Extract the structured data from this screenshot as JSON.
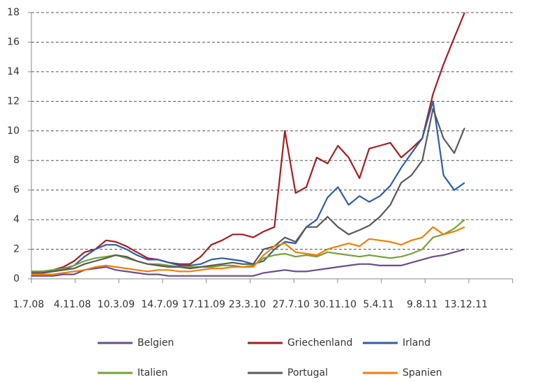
{
  "chart_data": {
    "type": "line",
    "x": [
      "1.7.08",
      "1.8.08",
      "1.9.08",
      "1.10.08",
      "1.11.08",
      "1.12.08",
      "1.1.09",
      "1.2.09",
      "1.3.09",
      "1.4.09",
      "1.5.09",
      "1.6.09",
      "1.7.09",
      "1.8.09",
      "1.9.09",
      "1.10.09",
      "1.11.09",
      "1.12.09",
      "1.1.10",
      "1.2.10",
      "1.3.10",
      "1.4.10",
      "1.5.10",
      "1.6.10",
      "1.7.10",
      "1.8.10",
      "1.9.10",
      "1.10.10",
      "1.11.10",
      "1.12.10",
      "1.1.11",
      "1.2.11",
      "1.3.11",
      "1.4.11",
      "1.5.11",
      "1.6.11",
      "1.7.11",
      "1.8.11",
      "1.9.11",
      "1.10.11",
      "1.11.11",
      "1.12.11"
    ],
    "xticks": [
      "1.7.08",
      "4.11.08",
      "10.3.09",
      "14.7.09",
      "17.11.09",
      "23.3.10",
      "27.7.10",
      "30.11.10",
      "5.4.11",
      "9.8.11",
      "13.12.11"
    ],
    "ylim": [
      0,
      18
    ],
    "yticks": [
      0,
      2,
      4,
      6,
      8,
      10,
      12,
      14,
      16,
      18
    ],
    "grid": true,
    "series": [
      {
        "name": "Belgien",
        "color": "#6b4c8f",
        "values": [
          0.2,
          0.2,
          0.2,
          0.3,
          0.3,
          0.6,
          0.7,
          0.8,
          0.6,
          0.5,
          0.4,
          0.3,
          0.3,
          0.2,
          0.2,
          0.2,
          0.2,
          0.2,
          0.2,
          0.2,
          0.2,
          0.2,
          0.4,
          0.5,
          0.6,
          0.5,
          0.5,
          0.6,
          0.7,
          0.8,
          0.9,
          1.0,
          1.0,
          0.9,
          0.9,
          0.9,
          1.1,
          1.3,
          1.5,
          1.6,
          1.8,
          2.0
        ]
      },
      {
        "name": "Griechenland",
        "color": "#a51d1d",
        "values": [
          0.5,
          0.5,
          0.6,
          0.8,
          1.2,
          1.8,
          2.0,
          2.6,
          2.5,
          2.2,
          1.8,
          1.4,
          1.3,
          1.1,
          1.0,
          1.0,
          1.5,
          2.3,
          2.6,
          3.0,
          3.0,
          2.8,
          3.2,
          3.5,
          10.0,
          5.8,
          6.2,
          8.2,
          7.8,
          9.0,
          8.2,
          6.8,
          8.8,
          9.0,
          9.2,
          8.2,
          8.8,
          9.5,
          12.5,
          14.5,
          16.3,
          18.0
        ]
      },
      {
        "name": "Irland",
        "color": "#2e5ea8",
        "values": [
          0.4,
          0.4,
          0.5,
          0.6,
          0.9,
          1.5,
          2.0,
          2.3,
          2.3,
          2.0,
          1.6,
          1.3,
          1.3,
          1.1,
          0.9,
          0.9,
          1.0,
          1.3,
          1.4,
          1.3,
          1.2,
          1.0,
          1.2,
          2.0,
          2.5,
          2.4,
          3.5,
          4.0,
          5.5,
          6.2,
          5.0,
          5.6,
          5.2,
          5.6,
          6.3,
          7.5,
          8.5,
          9.5,
          12.0,
          7.0,
          6.0,
          6.5
        ]
      },
      {
        "name": "Italien",
        "color": "#77a03a",
        "values": [
          0.5,
          0.5,
          0.6,
          0.7,
          0.9,
          1.2,
          1.4,
          1.5,
          1.6,
          1.4,
          1.2,
          1.0,
          1.0,
          0.9,
          0.8,
          0.8,
          0.8,
          0.8,
          0.9,
          0.9,
          0.8,
          0.9,
          1.4,
          1.6,
          1.7,
          1.5,
          1.6,
          1.5,
          1.8,
          1.7,
          1.6,
          1.5,
          1.6,
          1.5,
          1.4,
          1.5,
          1.7,
          2.0,
          2.8,
          3.0,
          3.4,
          4.0
        ]
      },
      {
        "name": "Portugal",
        "color": "#595959",
        "values": [
          0.4,
          0.4,
          0.5,
          0.6,
          0.7,
          1.0,
          1.2,
          1.4,
          1.6,
          1.5,
          1.2,
          1.0,
          0.9,
          0.8,
          0.8,
          0.7,
          0.8,
          0.9,
          1.0,
          1.1,
          1.0,
          1.0,
          2.0,
          2.2,
          2.8,
          2.5,
          3.5,
          3.5,
          4.2,
          3.5,
          3.0,
          3.3,
          3.6,
          4.2,
          5.0,
          6.5,
          7.0,
          8.0,
          11.5,
          9.5,
          8.5,
          10.2
        ]
      },
      {
        "name": "Spanien",
        "color": "#f07f0a",
        "values": [
          0.3,
          0.3,
          0.3,
          0.4,
          0.5,
          0.6,
          0.8,
          0.9,
          0.8,
          0.7,
          0.6,
          0.5,
          0.6,
          0.6,
          0.5,
          0.5,
          0.6,
          0.7,
          0.7,
          0.8,
          0.8,
          0.8,
          1.6,
          2.2,
          2.4,
          1.8,
          1.7,
          1.6,
          2.0,
          2.2,
          2.4,
          2.2,
          2.7,
          2.6,
          2.5,
          2.3,
          2.6,
          2.8,
          3.5,
          3.0,
          3.2,
          3.5
        ]
      }
    ]
  }
}
